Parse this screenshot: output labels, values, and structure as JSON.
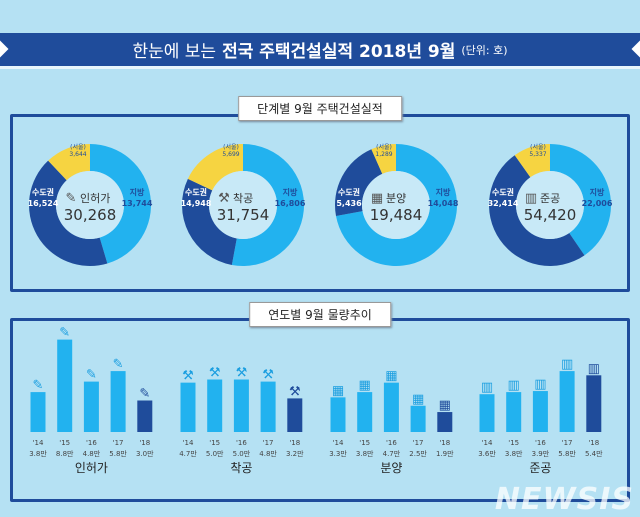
{
  "header": {
    "title_plain": "한눈에 보는",
    "title_bold": "전국 주택건설실적 2018년 9월",
    "unit": "(단위: 호)"
  },
  "sections": {
    "donuts_label": "단계별 9월 주택건설실적",
    "bars_label": "연도별 9월 물량추이"
  },
  "watermark": "NEWSIS",
  "colors": {
    "capital": "#1f4c9b",
    "local": "#22b2ef",
    "seoul": "#f6d441",
    "bar_last": "#1f4c9b",
    "bar": "#22b2ef"
  },
  "chart_data": [
    {
      "type": "pie",
      "subtype": "donut",
      "donuts": [
        {
          "name": "인허가",
          "icon": "document-pen-icon",
          "total": "30,268",
          "slices": [
            {
              "label": "지방",
              "value": 13744,
              "text": "13,744"
            },
            {
              "label": "수도권",
              "value": 16524,
              "text": "16,524"
            }
          ],
          "seoul": {
            "label": "(서울)",
            "value": 3644,
            "text": "3,644"
          }
        },
        {
          "name": "착공",
          "icon": "crane-icon",
          "total": "31,754",
          "slices": [
            {
              "label": "지방",
              "value": 16806,
              "text": "16,806"
            },
            {
              "label": "수도권",
              "value": 14948,
              "text": "14,948"
            }
          ],
          "seoul": {
            "label": "(서울)",
            "value": 5699,
            "text": "5,699"
          }
        },
        {
          "name": "분양",
          "icon": "presenter-board-icon",
          "total": "19,484",
          "slices": [
            {
              "label": "지방",
              "value": 14048,
              "text": "14,048"
            },
            {
              "label": "수도권",
              "value": 5436,
              "text": "5,436"
            }
          ],
          "seoul": {
            "label": "(서울)",
            "value": 1289,
            "text": "1,289"
          }
        },
        {
          "name": "준공",
          "icon": "building-icon",
          "total": "54,420",
          "slices": [
            {
              "label": "지방",
              "value": 22006,
              "text": "22,006"
            },
            {
              "label": "수도권",
              "value": 32414,
              "text": "32,414"
            }
          ],
          "seoul": {
            "label": "(서울)",
            "value": 5337,
            "text": "5,337"
          }
        }
      ]
    },
    {
      "type": "bar",
      "unit": "만",
      "categories": [
        "'14",
        "'15",
        "'16",
        "'17",
        "'18"
      ],
      "groups": [
        {
          "name": "인허가",
          "icon": "document-pen-icon",
          "values": [
            3.8,
            8.8,
            4.8,
            5.8,
            3.0
          ],
          "labels": [
            "3.8만",
            "8.8만",
            "4.8만",
            "5.8만",
            "3.0만"
          ]
        },
        {
          "name": "착공",
          "icon": "crane-icon",
          "values": [
            4.7,
            5.0,
            5.0,
            4.8,
            3.2
          ],
          "labels": [
            "4.7만",
            "5.0만",
            "5.0만",
            "4.8만",
            "3.2만"
          ]
        },
        {
          "name": "분양",
          "icon": "presenter-board-icon",
          "values": [
            3.3,
            3.8,
            4.7,
            2.5,
            1.9
          ],
          "labels": [
            "3.3만",
            "3.8만",
            "4.7만",
            "2.5만",
            "1.9만"
          ]
        },
        {
          "name": "준공",
          "icon": "building-icon",
          "values": [
            3.6,
            3.8,
            3.9,
            5.8,
            5.4
          ],
          "labels": [
            "3.6만",
            "3.8만",
            "3.9만",
            "5.8만",
            "5.4만"
          ]
        }
      ]
    }
  ]
}
